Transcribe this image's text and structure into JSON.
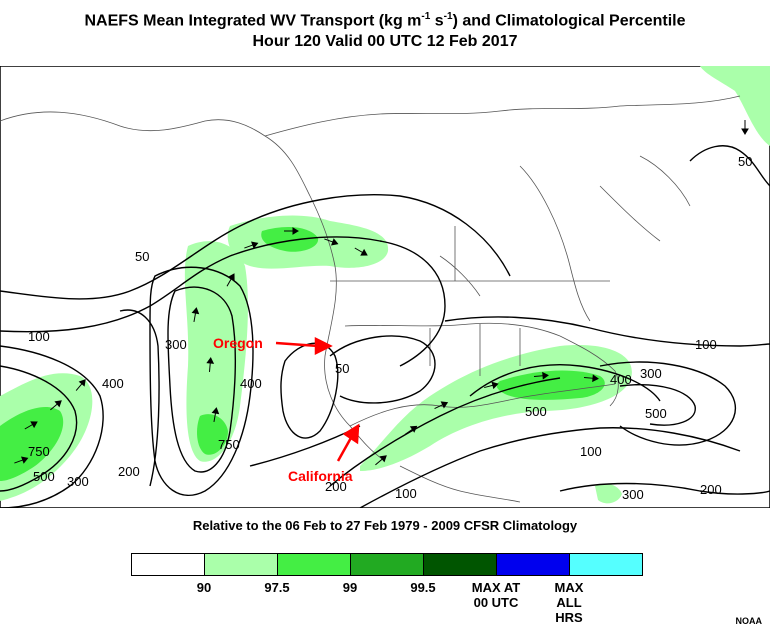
{
  "title_line1": "NAEFS Mean Integrated WV Transport (kg m",
  "title_sup1": "-1",
  "title_mid": " s",
  "title_sup2": "-1",
  "title_end": ") and Climatological Percentile",
  "title_line2": "Hour 120 Valid 00 UTC 12 Feb 2017",
  "climatology_note": "Relative to the 06 Feb to 27 Feb 1979 - 2009 CFSR Climatology",
  "annotations": {
    "oregon": "Oregon",
    "california": "California"
  },
  "contour_labels": [
    "50",
    "100",
    "200",
    "300",
    "400",
    "500",
    "750"
  ],
  "legend": {
    "colors": [
      "#ffffff",
      "#aaffaa",
      "#44ee44",
      "#22aa22",
      "#005500",
      "#0000ee",
      "#55ffff"
    ],
    "ticks": [
      "90",
      "97.5",
      "99",
      "99.5",
      "MAX AT 00 UTC",
      "MAX ALL HRS"
    ]
  },
  "credit": "NOAA",
  "colors": {
    "arrow_red": "#ff0000",
    "contour": "#000000",
    "border": "#555555"
  }
}
